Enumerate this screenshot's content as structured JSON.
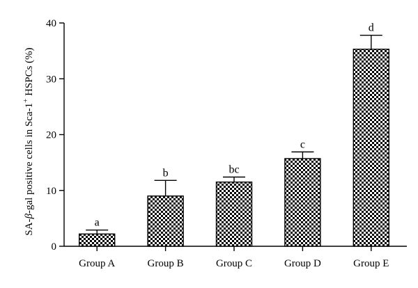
{
  "chart_data": {
    "type": "bar",
    "title": "",
    "xlabel": "",
    "ylabel_parts": [
      "SA-",
      "β",
      "-gal positive cells in Sca-1",
      "+",
      " HSPCs (%)"
    ],
    "ylim": [
      0,
      40
    ],
    "yticks": [
      0,
      10,
      20,
      30,
      40
    ],
    "categories": [
      "Group A",
      "Group B",
      "Group C",
      "Group D",
      "Group E"
    ],
    "values": [
      2.2,
      9.0,
      11.5,
      15.7,
      35.3
    ],
    "errors": [
      0.7,
      2.8,
      0.9,
      1.2,
      2.5
    ],
    "significance": [
      "a",
      "b",
      "bc",
      "c",
      "d"
    ],
    "bar_fill": "checkerboard",
    "colors": {
      "ink": "#000000",
      "background": "#ffffff"
    },
    "grid": false,
    "legend": "none"
  }
}
